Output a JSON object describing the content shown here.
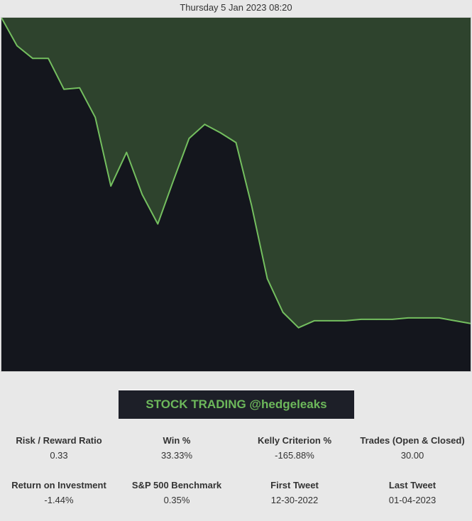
{
  "header": {
    "timestamp": "Thursday 5 Jan 2023 08:20"
  },
  "banner": {
    "title": "STOCK TRADING @hedgeleaks"
  },
  "colors": {
    "plot_background": "#14161d",
    "area_fill": "#2e432d",
    "line": "#74bf5f",
    "banner_text": "#6db85b"
  },
  "chart_data": {
    "type": "area",
    "title": "",
    "xlabel": "",
    "ylabel": "",
    "grid": false,
    "legend": "none",
    "x": [
      0,
      1,
      2,
      3,
      4,
      5,
      6,
      7,
      8,
      9,
      10,
      11,
      12,
      13,
      14,
      15,
      16,
      17,
      18,
      19,
      20,
      21,
      22,
      23,
      24,
      25,
      26,
      27,
      28,
      29,
      30
    ],
    "values": [
      0.2,
      -1.8,
      -2.7,
      -2.7,
      -4.9,
      -4.8,
      -6.9,
      -11.8,
      -9.4,
      -12.4,
      -14.5,
      -11.4,
      -8.4,
      -7.4,
      -8.0,
      -8.7,
      -13.2,
      -18.4,
      -20.8,
      -21.9,
      -21.4,
      -21.4,
      -21.4,
      -21.3,
      -21.3,
      -21.3,
      -21.2,
      -21.2,
      -21.2,
      -21.4,
      -21.6
    ],
    "ylim": [
      -25,
      0.2
    ]
  },
  "stats": [
    {
      "label": "Risk / Reward Ratio",
      "value": "0.33"
    },
    {
      "label": "Win %",
      "value": "33.33%"
    },
    {
      "label": "Kelly Criterion %",
      "value": "-165.88%"
    },
    {
      "label": "Trades (Open & Closed)",
      "value": "30.00"
    },
    {
      "label": "Return on Investment",
      "value": "-1.44%"
    },
    {
      "label": "S&P 500 Benchmark",
      "value": "0.35%"
    },
    {
      "label": "First Tweet",
      "value": "12-30-2022"
    },
    {
      "label": "Last Tweet",
      "value": "01-04-2023"
    }
  ]
}
